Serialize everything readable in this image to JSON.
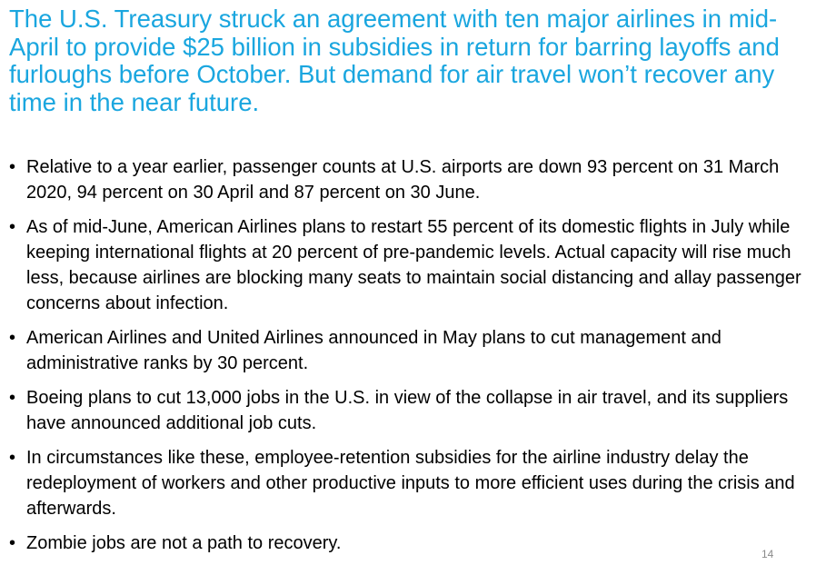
{
  "slide": {
    "title": "The U.S. Treasury struck an agreement with ten major airlines in mid-April to provide $25 billion in subsidies in return for barring layoffs and furloughs before October. But demand for air travel won’t recover any time in the near future.",
    "bullet_symbol": "•",
    "bullets": [
      "Relative to a year earlier, passenger counts at U.S. airports are down 93 percent on 31 March 2020, 94 percent on 30 April and 87 percent on 30 June.",
      "As of mid-June, American Airlines plans to restart 55 percent of its domestic flights in July while keeping international flights at 20 percent of pre-pandemic levels. Actual capacity will rise much less, because airlines are blocking many seats to maintain social distancing and allay passenger concerns about infection.",
      "American Airlines and United Airlines announced in May plans to cut management and administrative ranks by 30 percent.",
      "Boeing plans to cut 13,000 jobs in the U.S. in view of the collapse in air travel, and its suppliers have announced additional job cuts.",
      "In circumstances like these, employee-retention subsidies for the airline industry delay the redeployment of workers and other productive inputs to more efficient uses during the crisis and afterwards.",
      "Zombie jobs are not a path to recovery."
    ],
    "page_number": "14",
    "colors": {
      "title": "#1aa6df",
      "body_text": "#000000",
      "page_number": "#8a8a8a",
      "background": "#ffffff"
    }
  }
}
